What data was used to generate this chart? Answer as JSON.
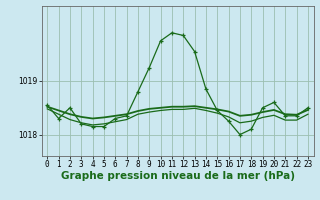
{
  "title": "Graphe pression niveau de la mer (hPa)",
  "bg_color": "#cce8f0",
  "grid_color": "#9bbfb0",
  "line_color": "#1a6b1a",
  "xlim": [
    -0.5,
    23.5
  ],
  "ylim": [
    1017.6,
    1020.4
  ],
  "yticks": [
    1018,
    1019
  ],
  "xticks": [
    0,
    1,
    2,
    3,
    4,
    5,
    6,
    7,
    8,
    9,
    10,
    11,
    12,
    13,
    14,
    15,
    16,
    17,
    18,
    19,
    20,
    21,
    22,
    23
  ],
  "series1_x": [
    0,
    1,
    2,
    3,
    4,
    5,
    6,
    7,
    8,
    9,
    10,
    11,
    12,
    13,
    14,
    15,
    16,
    17,
    18,
    19,
    20,
    21,
    22,
    23
  ],
  "series1_y": [
    1018.55,
    1018.3,
    1018.5,
    1018.2,
    1018.15,
    1018.15,
    1018.3,
    1018.35,
    1018.8,
    1019.25,
    1019.75,
    1019.9,
    1019.85,
    1019.55,
    1018.85,
    1018.45,
    1018.25,
    1018.0,
    1018.1,
    1018.5,
    1018.6,
    1018.35,
    1018.35,
    1018.5
  ],
  "series2_x": [
    0,
    1,
    2,
    3,
    4,
    5,
    6,
    7,
    8,
    9,
    10,
    11,
    12,
    13,
    14,
    15,
    16,
    17,
    18,
    19,
    20,
    21,
    22,
    23
  ],
  "series2_y": [
    1018.52,
    1018.45,
    1018.38,
    1018.33,
    1018.3,
    1018.32,
    1018.35,
    1018.38,
    1018.44,
    1018.48,
    1018.5,
    1018.52,
    1018.52,
    1018.53,
    1018.5,
    1018.47,
    1018.43,
    1018.35,
    1018.37,
    1018.42,
    1018.46,
    1018.38,
    1018.37,
    1018.46
  ],
  "series3_x": [
    0,
    1,
    2,
    3,
    4,
    5,
    6,
    7,
    8,
    9,
    10,
    11,
    12,
    13,
    14,
    15,
    16,
    17,
    18,
    19,
    20,
    21,
    22,
    23
  ],
  "series3_y": [
    1018.48,
    1018.38,
    1018.28,
    1018.22,
    1018.18,
    1018.2,
    1018.24,
    1018.28,
    1018.38,
    1018.42,
    1018.45,
    1018.47,
    1018.47,
    1018.49,
    1018.45,
    1018.4,
    1018.33,
    1018.22,
    1018.25,
    1018.32,
    1018.36,
    1018.27,
    1018.27,
    1018.38
  ],
  "tick_fontsize": 5.5,
  "xlabel_fontsize": 7.5
}
